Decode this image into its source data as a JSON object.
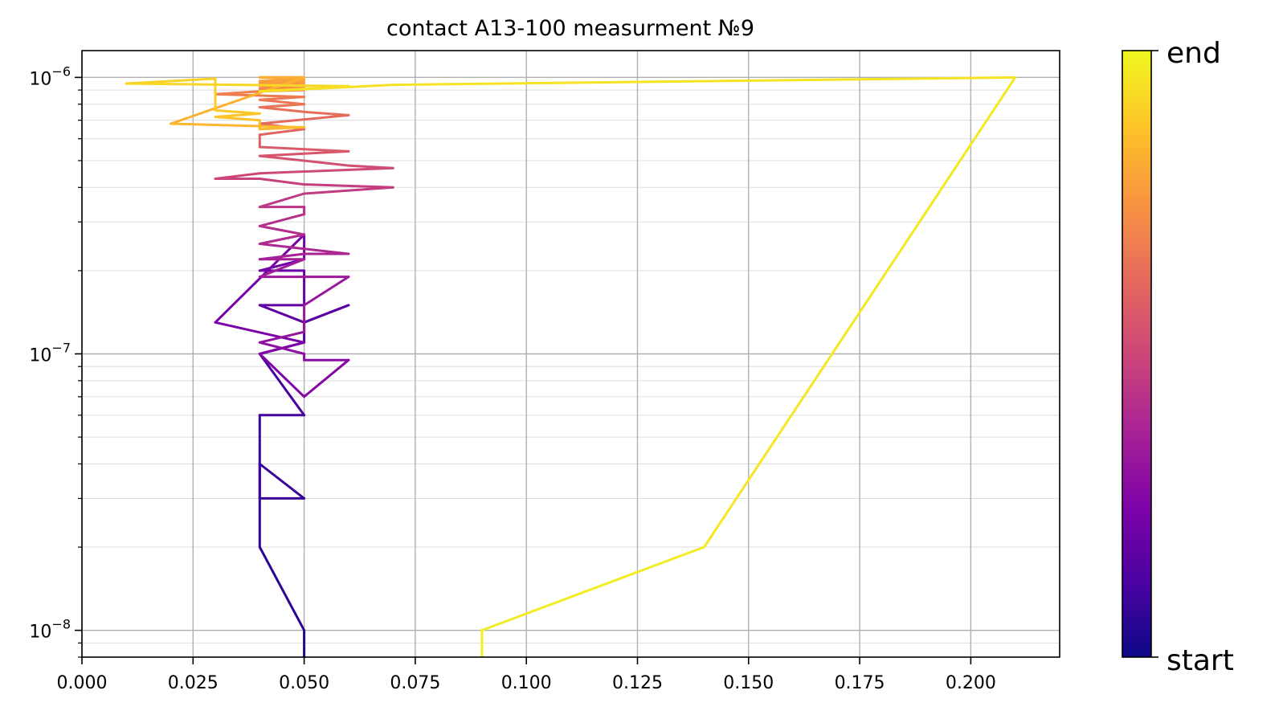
{
  "chart_data": {
    "type": "line",
    "title": "contact A13-100 measurment №9",
    "xlabel": "",
    "ylabel": "",
    "x_scale": "linear",
    "y_scale": "log",
    "xlim": [
      0.0,
      0.22
    ],
    "ylim": [
      8e-09,
      1.25e-06
    ],
    "x_ticks": [
      0.0,
      0.025,
      0.05,
      0.075,
      0.1,
      0.125,
      0.15,
      0.175,
      0.2
    ],
    "x_tick_labels": [
      "0.000",
      "0.025",
      "0.050",
      "0.075",
      "0.100",
      "0.125",
      "0.150",
      "0.175",
      "0.200"
    ],
    "y_ticks": [
      1e-08,
      1e-07,
      1e-06
    ],
    "y_tick_labels": [
      {
        "base": "10",
        "exp": "−8"
      },
      {
        "base": "10",
        "exp": "−7"
      },
      {
        "base": "10",
        "exp": "−6"
      }
    ],
    "grid": "major and minor",
    "colormap": "plasma",
    "colorbar": {
      "top_label": "end",
      "bottom_label": "start"
    },
    "series": [
      {
        "x": [
          0.05,
          0.05,
          0.04,
          0.04,
          0.05,
          0.04,
          0.04,
          0.05,
          0.04,
          0.05,
          0.05,
          0.06,
          0.05,
          0.04,
          0.05,
          0.05,
          0.04,
          0.05,
          0.05,
          0.03,
          0.05,
          0.04,
          0.05,
          0.06,
          0.05,
          0.05,
          0.04,
          0.05,
          0.05,
          0.06,
          0.04,
          0.05,
          0.04,
          0.05,
          0.06,
          0.04,
          0.05,
          0.04,
          0.05,
          0.05,
          0.04,
          0.05,
          0.07,
          0.05,
          0.04,
          0.03,
          0.04,
          0.07,
          0.06,
          0.05,
          0.04,
          0.05,
          0.06,
          0.04,
          0.04,
          0.04,
          0.05,
          0.04,
          0.06,
          0.05,
          0.04,
          0.05,
          0.04,
          0.05,
          0.03,
          0.04,
          0.05,
          0.04,
          0.05,
          0.04,
          0.05,
          0.04,
          0.05,
          0.04,
          0.05,
          0.04,
          0.05,
          0.04,
          0.05,
          0.02,
          0.05,
          0.04,
          0.04,
          0.03,
          0.04,
          0.03,
          0.03,
          0.01,
          0.06,
          0.04,
          0.07,
          0.21,
          0.14,
          0.09,
          0.09
        ],
        "y": [
          8e-09,
          1e-08,
          2e-08,
          4e-08,
          3e-08,
          3e-08,
          6e-08,
          6e-08,
          1e-07,
          1.1e-07,
          1.3e-07,
          1.5e-07,
          1.3e-07,
          1.5e-07,
          1.5e-07,
          2e-07,
          2e-07,
          2.2e-07,
          2.7e-07,
          1.3e-07,
          1.1e-07,
          1e-07,
          7e-08,
          9.5e-08,
          9.5e-08,
          1e-07,
          1.1e-07,
          1.2e-07,
          1.5e-07,
          1.9e-07,
          1.9e-07,
          2.2e-07,
          2.2e-07,
          2.3e-07,
          2.3e-07,
          2.5e-07,
          2.7e-07,
          2.9e-07,
          3.2e-07,
          3.4e-07,
          3.4e-07,
          3.8e-07,
          4e-07,
          4.1e-07,
          4.3e-07,
          4.3e-07,
          4.5e-07,
          4.7e-07,
          4.8e-07,
          5e-07,
          5.2e-07,
          5.3e-07,
          5.4e-07,
          5.6e-07,
          5.8e-07,
          6.2e-07,
          6.5e-07,
          6.8e-07,
          7.3e-07,
          7.5e-07,
          7.8e-07,
          8e-07,
          8.3e-07,
          8.5e-07,
          8.7e-07,
          8.9e-07,
          9e-07,
          9.1e-07,
          9.2e-07,
          9.3e-07,
          9.4e-07,
          9.5e-07,
          9.6e-07,
          9.7e-07,
          9.8e-07,
          1e-06,
          1e-06,
          1e-06,
          1e-06,
          6.8e-07,
          6.6e-07,
          6.5e-07,
          7e-07,
          7.2e-07,
          7.4e-07,
          7.6e-07,
          9.9e-07,
          9.5e-07,
          9.3e-07,
          8.9e-07,
          9.4e-07,
          1e-06,
          2e-08,
          1e-08,
          8e-09
        ]
      }
    ]
  }
}
